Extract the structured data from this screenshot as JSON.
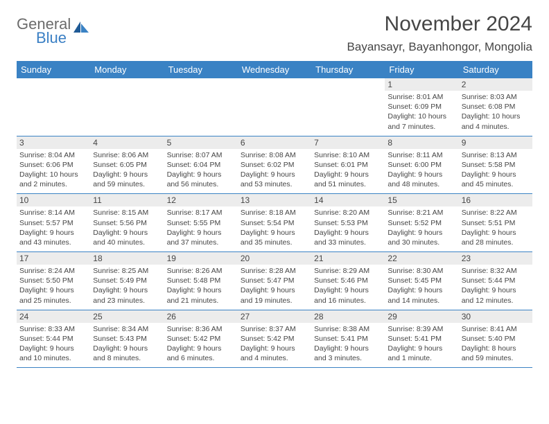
{
  "logo": {
    "word1": "General",
    "word2": "Blue"
  },
  "title": "November 2024",
  "location": "Bayansayr, Bayanhongor, Mongolia",
  "colors": {
    "header_bg": "#3a82c4",
    "date_bg": "#ececec",
    "text": "#454545",
    "logo_gray": "#6b6b6b",
    "logo_blue": "#3a7fc4"
  },
  "dayNames": [
    "Sunday",
    "Monday",
    "Tuesday",
    "Wednesday",
    "Thursday",
    "Friday",
    "Saturday"
  ],
  "weeks": [
    [
      null,
      null,
      null,
      null,
      null,
      {
        "d": "1",
        "sr": "8:01 AM",
        "ss": "6:09 PM",
        "dl": "10 hours and 7 minutes."
      },
      {
        "d": "2",
        "sr": "8:03 AM",
        "ss": "6:08 PM",
        "dl": "10 hours and 4 minutes."
      }
    ],
    [
      {
        "d": "3",
        "sr": "8:04 AM",
        "ss": "6:06 PM",
        "dl": "10 hours and 2 minutes."
      },
      {
        "d": "4",
        "sr": "8:06 AM",
        "ss": "6:05 PM",
        "dl": "9 hours and 59 minutes."
      },
      {
        "d": "5",
        "sr": "8:07 AM",
        "ss": "6:04 PM",
        "dl": "9 hours and 56 minutes."
      },
      {
        "d": "6",
        "sr": "8:08 AM",
        "ss": "6:02 PM",
        "dl": "9 hours and 53 minutes."
      },
      {
        "d": "7",
        "sr": "8:10 AM",
        "ss": "6:01 PM",
        "dl": "9 hours and 51 minutes."
      },
      {
        "d": "8",
        "sr": "8:11 AM",
        "ss": "6:00 PM",
        "dl": "9 hours and 48 minutes."
      },
      {
        "d": "9",
        "sr": "8:13 AM",
        "ss": "5:58 PM",
        "dl": "9 hours and 45 minutes."
      }
    ],
    [
      {
        "d": "10",
        "sr": "8:14 AM",
        "ss": "5:57 PM",
        "dl": "9 hours and 43 minutes."
      },
      {
        "d": "11",
        "sr": "8:15 AM",
        "ss": "5:56 PM",
        "dl": "9 hours and 40 minutes."
      },
      {
        "d": "12",
        "sr": "8:17 AM",
        "ss": "5:55 PM",
        "dl": "9 hours and 37 minutes."
      },
      {
        "d": "13",
        "sr": "8:18 AM",
        "ss": "5:54 PM",
        "dl": "9 hours and 35 minutes."
      },
      {
        "d": "14",
        "sr": "8:20 AM",
        "ss": "5:53 PM",
        "dl": "9 hours and 33 minutes."
      },
      {
        "d": "15",
        "sr": "8:21 AM",
        "ss": "5:52 PM",
        "dl": "9 hours and 30 minutes."
      },
      {
        "d": "16",
        "sr": "8:22 AM",
        "ss": "5:51 PM",
        "dl": "9 hours and 28 minutes."
      }
    ],
    [
      {
        "d": "17",
        "sr": "8:24 AM",
        "ss": "5:50 PM",
        "dl": "9 hours and 25 minutes."
      },
      {
        "d": "18",
        "sr": "8:25 AM",
        "ss": "5:49 PM",
        "dl": "9 hours and 23 minutes."
      },
      {
        "d": "19",
        "sr": "8:26 AM",
        "ss": "5:48 PM",
        "dl": "9 hours and 21 minutes."
      },
      {
        "d": "20",
        "sr": "8:28 AM",
        "ss": "5:47 PM",
        "dl": "9 hours and 19 minutes."
      },
      {
        "d": "21",
        "sr": "8:29 AM",
        "ss": "5:46 PM",
        "dl": "9 hours and 16 minutes."
      },
      {
        "d": "22",
        "sr": "8:30 AM",
        "ss": "5:45 PM",
        "dl": "9 hours and 14 minutes."
      },
      {
        "d": "23",
        "sr": "8:32 AM",
        "ss": "5:44 PM",
        "dl": "9 hours and 12 minutes."
      }
    ],
    [
      {
        "d": "24",
        "sr": "8:33 AM",
        "ss": "5:44 PM",
        "dl": "9 hours and 10 minutes."
      },
      {
        "d": "25",
        "sr": "8:34 AM",
        "ss": "5:43 PM",
        "dl": "9 hours and 8 minutes."
      },
      {
        "d": "26",
        "sr": "8:36 AM",
        "ss": "5:42 PM",
        "dl": "9 hours and 6 minutes."
      },
      {
        "d": "27",
        "sr": "8:37 AM",
        "ss": "5:42 PM",
        "dl": "9 hours and 4 minutes."
      },
      {
        "d": "28",
        "sr": "8:38 AM",
        "ss": "5:41 PM",
        "dl": "9 hours and 3 minutes."
      },
      {
        "d": "29",
        "sr": "8:39 AM",
        "ss": "5:41 PM",
        "dl": "9 hours and 1 minute."
      },
      {
        "d": "30",
        "sr": "8:41 AM",
        "ss": "5:40 PM",
        "dl": "8 hours and 59 minutes."
      }
    ]
  ],
  "labels": {
    "sunrise": "Sunrise: ",
    "sunset": "Sunset: ",
    "daylight": "Daylight: "
  }
}
